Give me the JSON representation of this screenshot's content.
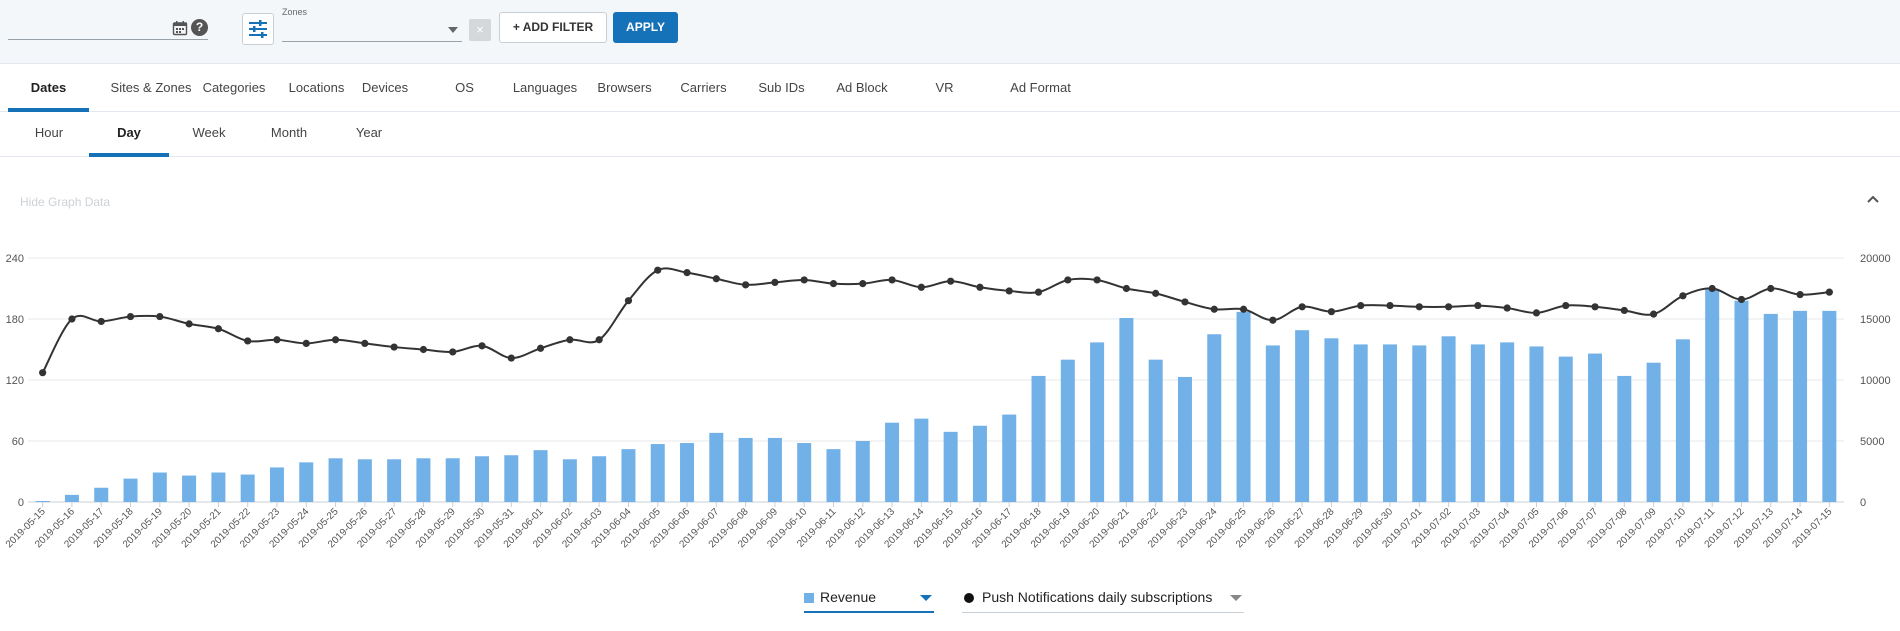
{
  "filters": {
    "date_value": "",
    "zones_label": "Zones",
    "zones_value": "",
    "clear_label": "×",
    "add_filter_label": "+ ADD FILTER",
    "apply_label": "APPLY",
    "help_label": "?"
  },
  "main_tabs": [
    {
      "label": "Dates",
      "active": true
    },
    {
      "label": "Sites & Zones"
    },
    {
      "label": "Categories"
    },
    {
      "label": "Locations"
    },
    {
      "label": "Devices"
    },
    {
      "label": "OS"
    },
    {
      "label": "Languages"
    },
    {
      "label": "Browsers"
    },
    {
      "label": "Carriers"
    },
    {
      "label": "Sub IDs"
    },
    {
      "label": "Ad Block"
    },
    {
      "label": "VR"
    },
    {
      "label": "Ad Format"
    }
  ],
  "period_tabs": [
    {
      "label": "Hour"
    },
    {
      "label": "Day",
      "active": true
    },
    {
      "label": "Week"
    },
    {
      "label": "Month"
    },
    {
      "label": "Year"
    }
  ],
  "graph_toggle": "Hide Graph Data",
  "legend": {
    "revenue": "Revenue",
    "push": "Push Notifications daily subscriptions"
  },
  "chart_data": {
    "type": "bar",
    "x": [
      "2019-05-15",
      "2019-05-16",
      "2019-05-17",
      "2019-05-18",
      "2019-05-19",
      "2019-05-20",
      "2019-05-21",
      "2019-05-22",
      "2019-05-23",
      "2019-05-24",
      "2019-05-25",
      "2019-05-26",
      "2019-05-27",
      "2019-05-28",
      "2019-05-29",
      "2019-05-30",
      "2019-05-31",
      "2019-06-01",
      "2019-06-02",
      "2019-06-03",
      "2019-06-04",
      "2019-06-05",
      "2019-06-06",
      "2019-06-07",
      "2019-06-08",
      "2019-06-09",
      "2019-06-10",
      "2019-06-11",
      "2019-06-12",
      "2019-06-13",
      "2019-06-14",
      "2019-06-15",
      "2019-06-16",
      "2019-06-17",
      "2019-06-18",
      "2019-06-19",
      "2019-06-20",
      "2019-06-21",
      "2019-06-22",
      "2019-06-23",
      "2019-06-24",
      "2019-06-25",
      "2019-06-26",
      "2019-06-27",
      "2019-06-28",
      "2019-06-29",
      "2019-06-30",
      "2019-07-01",
      "2019-07-02",
      "2019-07-03",
      "2019-07-04",
      "2019-07-05",
      "2019-07-06",
      "2019-07-07",
      "2019-07-08",
      "2019-07-09",
      "2019-07-10",
      "2019-07-11",
      "2019-07-12",
      "2019-07-13",
      "2019-07-14",
      "2019-07-15"
    ],
    "series": [
      {
        "name": "Revenue",
        "type": "bar",
        "axis": "left",
        "color": "#71b1e7",
        "values": [
          1,
          7,
          14,
          23,
          29,
          26,
          29,
          27,
          34,
          39,
          43,
          42,
          42,
          43,
          43,
          45,
          46,
          51,
          42,
          45,
          52,
          57,
          58,
          68,
          63,
          63,
          58,
          52,
          60,
          78,
          82,
          69,
          75,
          86,
          124,
          140,
          157,
          181,
          140,
          123,
          165,
          187,
          154,
          169,
          161,
          155,
          155,
          154,
          163,
          155,
          157,
          153,
          143,
          146,
          124,
          137,
          160,
          209,
          198,
          185,
          188,
          188
        ]
      },
      {
        "name": "Push Notifications daily subscriptions",
        "type": "line",
        "axis": "right",
        "color": "#333333",
        "values": [
          10600,
          15000,
          14800,
          15200,
          15200,
          14600,
          14200,
          13200,
          13300,
          13000,
          13300,
          13000,
          12700,
          12500,
          12300,
          12800,
          11800,
          12600,
          13300,
          13300,
          16500,
          19000,
          18800,
          18300,
          17800,
          18000,
          18200,
          17900,
          17900,
          18200,
          17600,
          18100,
          17600,
          17300,
          17200,
          18200,
          18200,
          17500,
          17100,
          16400,
          15800,
          15800,
          14900,
          16000,
          15600,
          16100,
          16100,
          16000,
          16000,
          16100,
          15900,
          15500,
          16100,
          16000,
          15700,
          15400,
          16900,
          17500,
          16600,
          17500,
          17000,
          17200
        ]
      }
    ],
    "y_left": {
      "ticks": [
        0,
        60,
        120,
        180,
        240
      ],
      "range": [
        0,
        240
      ]
    },
    "y_right": {
      "ticks": [
        0,
        5000,
        10000,
        15000,
        20000
      ],
      "range": [
        0,
        20000
      ]
    },
    "grid": true
  }
}
